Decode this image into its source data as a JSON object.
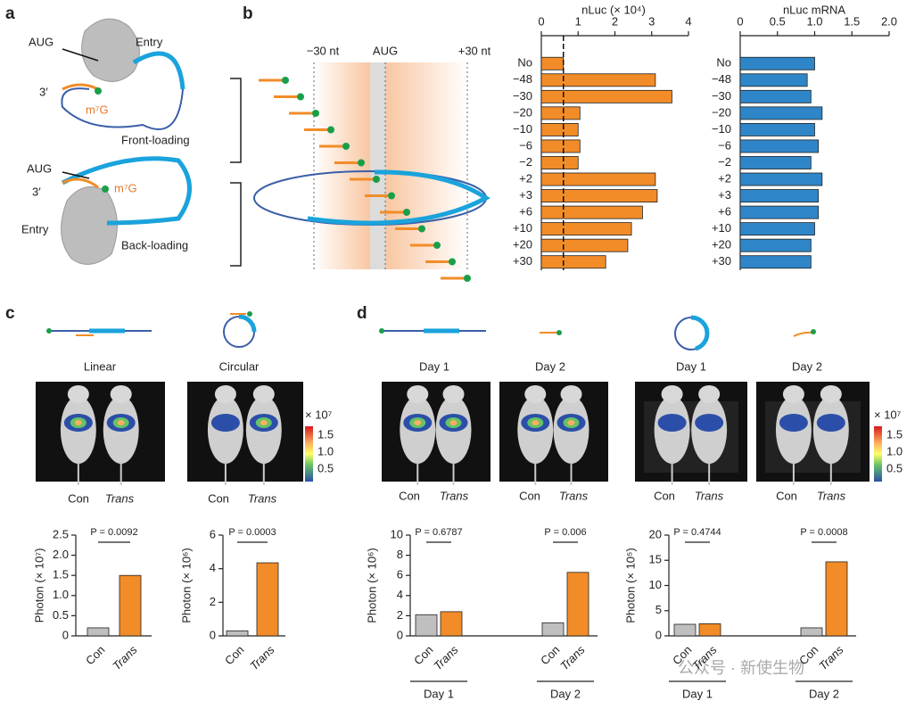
{
  "panel_labels": [
    "a",
    "b",
    "c",
    "d"
  ],
  "panel_a": {
    "front": {
      "aug": "AUG",
      "entry": "Entry",
      "three": "3′",
      "cap": "m⁷G",
      "caption": "Front-loading"
    },
    "back": {
      "aug": "AUG",
      "entry": "Entry",
      "three": "3′",
      "cap": "m⁷G",
      "caption": "Back-loading"
    }
  },
  "panel_b_schematic": {
    "left": "−30 nt",
    "center": "AUG",
    "right": "+30 nt"
  },
  "panel_c": {
    "linear": "Linear",
    "circular": "Circular",
    "con": "Con",
    "trans": "Trans",
    "colorbar": {
      "title": "× 10⁷",
      "ticks": [
        "1.5",
        "1.0",
        "0.5"
      ]
    }
  },
  "panel_d": {
    "day1": "Day 1",
    "day2": "Day 2",
    "con": "Con",
    "trans": "Trans",
    "colorbar": {
      "title": "× 10⁷",
      "ticks": [
        "1.5",
        "1.0",
        "0.5"
      ]
    }
  },
  "watermark": "公众号 · 新使生物",
  "chart_data": [
    {
      "type": "hbar",
      "title": "nLuc (× 10⁴)",
      "categories": [
        "No",
        "−48",
        "−30",
        "−20",
        "−10",
        "−6",
        "−2",
        "+2",
        "+3",
        "+6",
        "+10",
        "+20",
        "+30"
      ],
      "values": [
        0.6,
        3.1,
        3.55,
        1.05,
        1.0,
        1.05,
        1.0,
        3.1,
        3.15,
        2.75,
        2.45,
        2.35,
        1.75
      ],
      "color": "#f28c28",
      "xlim": [
        0,
        4
      ],
      "xticks": [
        0,
        1,
        2,
        3,
        4
      ],
      "reference_line": 0.6
    },
    {
      "type": "hbar",
      "title": "nLuc mRNA",
      "categories": [
        "No",
        "−48",
        "−30",
        "−20",
        "−10",
        "−6",
        "−2",
        "+2",
        "+3",
        "+6",
        "+10",
        "+20",
        "+30"
      ],
      "values": [
        1.0,
        0.9,
        0.95,
        1.1,
        1.0,
        1.05,
        0.95,
        1.1,
        1.05,
        1.05,
        1.0,
        0.95,
        0.95
      ],
      "color": "#2e86c8",
      "xlim": [
        0,
        2
      ],
      "xticks": [
        0,
        0.5,
        {
          "value": 1,
          "label": "1.0"
        },
        1.5,
        {
          "value": 2,
          "label": "2.0"
        }
      ]
    },
    {
      "type": "bar",
      "ylabel": "Photon (× 10⁷)",
      "categories": [
        "Con",
        "Trans"
      ],
      "values": [
        0.2,
        1.5
      ],
      "colors": [
        "#bfbfbf",
        "#f28c28"
      ],
      "ylim": [
        0,
        2.5
      ],
      "yticks": [
        0,
        0.5,
        {
          "value": 1,
          "label": "1.0"
        },
        1.5,
        {
          "value": 2,
          "label": "2.0"
        },
        2.5
      ],
      "annotations": [
        "P = 0.0092"
      ]
    },
    {
      "type": "bar",
      "ylabel": "Photon (× 10⁶)",
      "categories": [
        "Con",
        "Trans"
      ],
      "values": [
        0.3,
        4.35
      ],
      "colors": [
        "#bfbfbf",
        "#f28c28"
      ],
      "ylim": [
        0,
        6
      ],
      "yticks": [
        0,
        2,
        4,
        6
      ],
      "annotations": [
        "P = 0.0003"
      ]
    },
    {
      "type": "grouped_bar",
      "ylabel": "Photon (× 10⁶)",
      "categories": [
        "Day 1",
        "Day 2"
      ],
      "series": [
        {
          "name": "Con",
          "color": "#bfbfbf",
          "values": [
            2.1,
            1.3
          ]
        },
        {
          "name": "Trans",
          "color": "#f28c28",
          "values": [
            2.4,
            6.3
          ]
        }
      ],
      "ylim": [
        0,
        10
      ],
      "yticks": [
        0,
        2,
        4,
        6,
        8,
        10
      ],
      "annotations": [
        "P = 0.6787",
        "P = 0.006"
      ]
    },
    {
      "type": "grouped_bar",
      "ylabel": "Photon (× 10⁵)",
      "categories": [
        "Day 1",
        "Day 2"
      ],
      "series": [
        {
          "name": "Con",
          "color": "#bfbfbf",
          "values": [
            2.3,
            1.6
          ]
        },
        {
          "name": "Trans",
          "color": "#f28c28",
          "values": [
            2.4,
            14.7
          ]
        }
      ],
      "ylim": [
        0,
        20
      ],
      "yticks": [
        0,
        5,
        10,
        15,
        20
      ],
      "annotations": [
        "P = 0.4744",
        "P = 0.0008"
      ]
    }
  ]
}
